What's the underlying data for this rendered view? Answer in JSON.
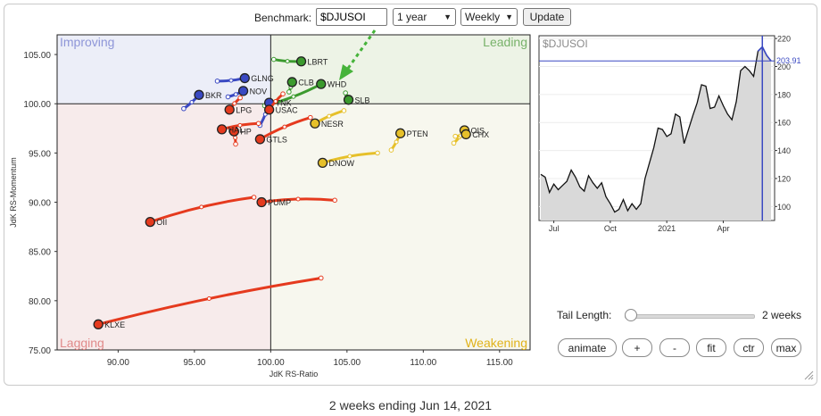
{
  "toolbar": {
    "benchmark_label": "Benchmark:",
    "benchmark_value": "$DJUSOI",
    "period_value": "1 year",
    "frequency_value": "Weekly",
    "update_label": "Update"
  },
  "chart_data": [
    {
      "type": "scatter",
      "subtype": "relative-rotation-graph",
      "xlabel": "JdK RS-Ratio",
      "ylabel": "JdK RS-Momentum",
      "xlim": [
        86,
        117
      ],
      "ylim": [
        75,
        107
      ],
      "x_ticks": [
        "90.00",
        "95.00",
        "100.00",
        "105.00",
        "110.00",
        "115.00"
      ],
      "y_ticks": [
        "75.00",
        "80.00",
        "85.00",
        "90.00",
        "95.00",
        "100.00",
        "105.00"
      ],
      "quadrants": {
        "top_left": "Improving",
        "top_right": "Leading",
        "bottom_left": "Lagging",
        "bottom_right": "Weakening"
      },
      "quadrant_colors": {
        "improving": "#eceef8",
        "leading": "#edf3e6",
        "lagging": "#f7ebeb",
        "weakening": "#f7f7ee"
      },
      "series_colors": {
        "leading": "#3b9a2e",
        "improving": "#3a49c2",
        "lagging": "#e53a1e",
        "weakening": "#e6c02a"
      },
      "grid": false,
      "annotation": "green dashed arrow pointing toward WHD",
      "series": [
        {
          "name": "LBRT",
          "quadrant": "leading",
          "points": [
            [
              100.2,
              104.5
            ],
            [
              102.0,
              104.3
            ]
          ]
        },
        {
          "name": "CLB",
          "quadrant": "leading",
          "points": [
            [
              101.2,
              101.2
            ],
            [
              101.4,
              102.2
            ]
          ]
        },
        {
          "name": "WHD",
          "quadrant": "leading",
          "points": [
            [
              99.6,
              99.8
            ],
            [
              103.3,
              102.0
            ]
          ]
        },
        {
          "name": "SLB",
          "quadrant": "leading",
          "points": [
            [
              104.9,
              101.1
            ],
            [
              105.1,
              100.4
            ]
          ]
        },
        {
          "name": "GLNG",
          "quadrant": "improving",
          "points": [
            [
              96.5,
              102.3
            ],
            [
              98.3,
              102.6
            ]
          ]
        },
        {
          "name": "NOV",
          "quadrant": "improving",
          "points": [
            [
              97.2,
              100.7
            ],
            [
              98.2,
              101.3
            ]
          ]
        },
        {
          "name": "BKR",
          "quadrant": "improving",
          "points": [
            [
              94.3,
              99.5
            ],
            [
              95.3,
              100.9
            ]
          ]
        },
        {
          "name": "TNK",
          "quadrant": "improving",
          "points": [
            [
              99.3,
              97.8
            ],
            [
              99.9,
              100.1
            ]
          ]
        },
        {
          "name": "LPG",
          "quadrant": "lagging",
          "points": [
            [
              98.0,
              100.6
            ],
            [
              97.3,
              99.4
            ]
          ]
        },
        {
          "name": "USAC",
          "quadrant": "lagging",
          "points": [
            [
              100.8,
              101.0
            ],
            [
              99.9,
              99.4
            ]
          ]
        },
        {
          "name": "HP",
          "quadrant": "lagging",
          "points": [
            [
              97.7,
              95.9
            ],
            [
              97.6,
              97.2
            ]
          ]
        },
        {
          "name": "HAL",
          "quadrant": "lagging",
          "points": [
            [
              99.2,
              98.0
            ],
            [
              96.8,
              97.4
            ]
          ]
        },
        {
          "name": "GTLS",
          "quadrant": "lagging",
          "points": [
            [
              102.6,
              98.6
            ],
            [
              99.3,
              96.4
            ]
          ]
        },
        {
          "name": "PUMP",
          "quadrant": "lagging",
          "points": [
            [
              104.2,
              90.2
            ],
            [
              99.4,
              90.0
            ]
          ]
        },
        {
          "name": "OII",
          "quadrant": "lagging",
          "points": [
            [
              98.9,
              90.5
            ],
            [
              92.1,
              88.0
            ]
          ]
        },
        {
          "name": "KLXE",
          "quadrant": "lagging",
          "points": [
            [
              103.3,
              82.3
            ],
            [
              88.7,
              77.6
            ]
          ]
        },
        {
          "name": "NESR",
          "quadrant": "weakening",
          "points": [
            [
              104.8,
              99.3
            ],
            [
              102.9,
              98.0
            ]
          ]
        },
        {
          "name": "DNOW",
          "quadrant": "weakening",
          "points": [
            [
              107.0,
              95.0
            ],
            [
              103.4,
              94.0
            ]
          ]
        },
        {
          "name": "PTEN",
          "quadrant": "weakening",
          "points": [
            [
              107.9,
              95.3
            ],
            [
              108.5,
              97.0
            ]
          ]
        },
        {
          "name": "OIS",
          "quadrant": "weakening",
          "points": [
            [
              112.0,
              96.0
            ],
            [
              112.7,
              97.3
            ]
          ]
        },
        {
          "name": "CHX",
          "quadrant": "weakening",
          "points": [
            [
              112.1,
              96.7
            ],
            [
              112.8,
              96.9
            ]
          ]
        }
      ]
    },
    {
      "type": "area",
      "title": "$DJUSOI",
      "x_ticks": [
        "Jul",
        "Oct",
        "2021",
        "Apr"
      ],
      "y_ticks": [
        "100",
        "120",
        "140",
        "160",
        "180",
        "200",
        "220"
      ],
      "ylim": [
        90,
        222
      ],
      "last_value_label": "203.91",
      "x": [
        0,
        1,
        2,
        3,
        4,
        5,
        6,
        7,
        8,
        9,
        10,
        11,
        12,
        13,
        14,
        15,
        16,
        17,
        18,
        19,
        20,
        21,
        22,
        23,
        24,
        25,
        26,
        27,
        28,
        29,
        30,
        31,
        32,
        33,
        34,
        35,
        36,
        37,
        38,
        39,
        40,
        41,
        42,
        43,
        44,
        45,
        46,
        47,
        48,
        49,
        50,
        51,
        52,
        53
      ],
      "values": [
        123,
        121,
        110,
        116,
        112,
        115,
        118,
        126,
        121,
        114,
        111,
        122,
        117,
        113,
        117,
        107,
        102,
        96,
        98,
        105,
        97,
        102,
        98,
        102,
        120,
        131,
        142,
        156,
        155,
        150,
        152,
        166,
        164,
        145,
        155,
        165,
        174,
        187,
        186,
        170,
        171,
        179,
        172,
        166,
        162,
        175,
        197,
        200,
        197,
        193,
        211,
        214,
        208,
        204
      ]
    }
  ],
  "controls": {
    "tail_length_label": "Tail Length:",
    "tail_length_value": "2 weeks",
    "tail_fraction": 0,
    "buttons": {
      "animate": "animate",
      "plus": "+",
      "minus": "-",
      "fit": "fit",
      "ctr": "ctr",
      "max": "max"
    }
  },
  "caption": "2 weeks ending Jun 14, 2021"
}
